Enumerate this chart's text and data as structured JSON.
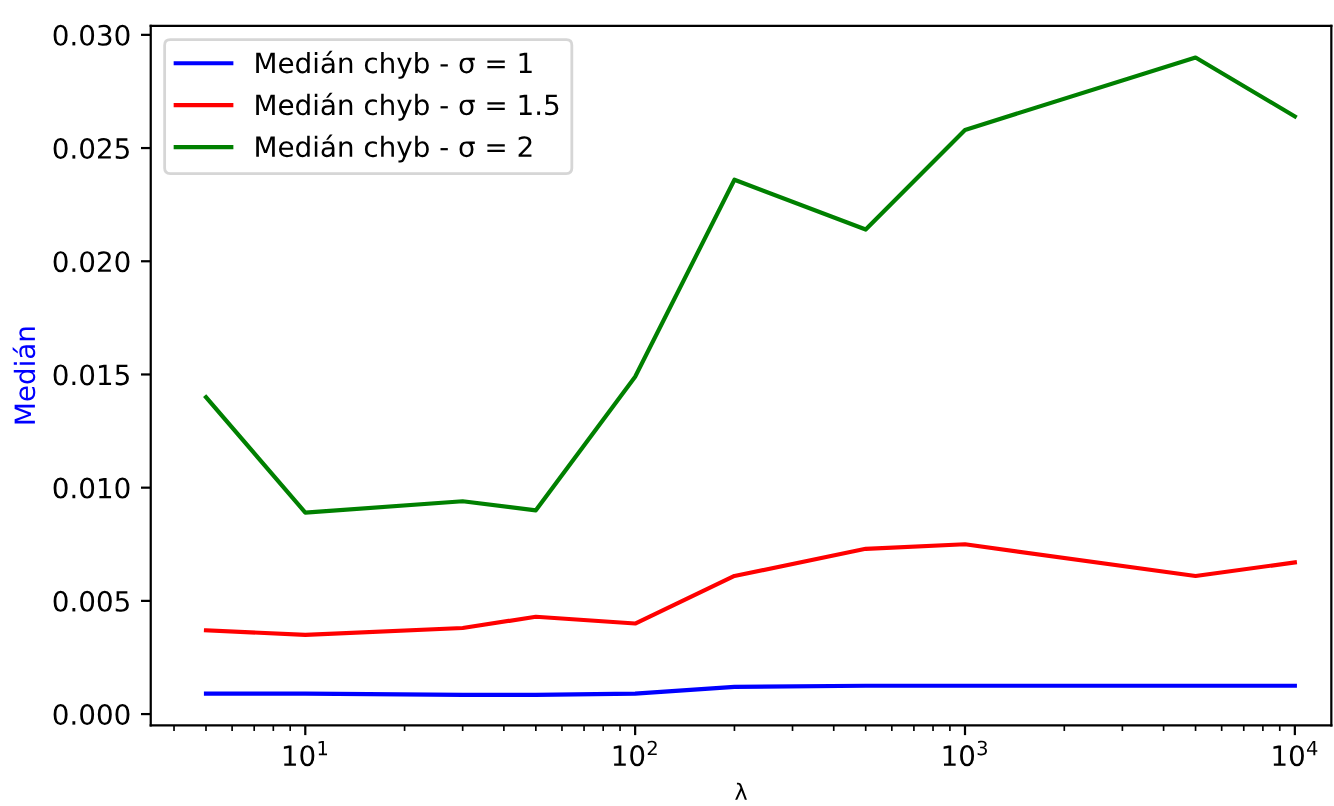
{
  "chart_data": {
    "type": "line",
    "xlabel": "λ",
    "ylabel": "Medián",
    "log": "x",
    "grid": false,
    "legend": "top left",
    "x": [
      5,
      10,
      30,
      50,
      100,
      200,
      500,
      1000,
      5000,
      10000
    ],
    "xlim": [
      3.4,
      12900
    ],
    "xticks": [
      {
        "value": 10,
        "label": "10$^{1}$"
      },
      {
        "value": 100,
        "label": "10$^{2}$"
      },
      {
        "value": 1000,
        "label": "10$^{3}$"
      },
      {
        "value": 10000,
        "label": "10$^{4}$"
      }
    ],
    "ylim": [
      -0.0005,
      0.0304
    ],
    "yticks": [
      {
        "value": 0,
        "label": "0.000"
      },
      {
        "value": 0.005,
        "label": "0.005"
      },
      {
        "value": 0.01,
        "label": "0.010"
      },
      {
        "value": 0.015,
        "label": "0.015"
      },
      {
        "value": 0.02,
        "label": "0.020"
      },
      {
        "value": 0.025,
        "label": "0.025"
      },
      {
        "value": 0.03,
        "label": "0.030"
      }
    ],
    "series": [
      {
        "name": "Medián chyb - σ = 1",
        "color": "#0000ff",
        "values": [
          0.0009,
          0.0009,
          0.00085,
          0.00085,
          0.0009,
          0.0012,
          0.00125,
          0.00125,
          0.00125,
          0.00125
        ]
      },
      {
        "name": "Medián chyb - σ = 1.5",
        "color": "#ff0000",
        "values": [
          0.0037,
          0.0035,
          0.0038,
          0.0043,
          0.004,
          0.0061,
          0.0073,
          0.0075,
          0.0061,
          0.0067
        ]
      },
      {
        "name": "Medián chyb - σ = 2",
        "color": "#008000",
        "values": [
          0.014,
          0.0089,
          0.0094,
          0.009,
          0.0149,
          0.0236,
          0.0214,
          0.0258,
          0.029,
          0.0264
        ]
      }
    ]
  }
}
